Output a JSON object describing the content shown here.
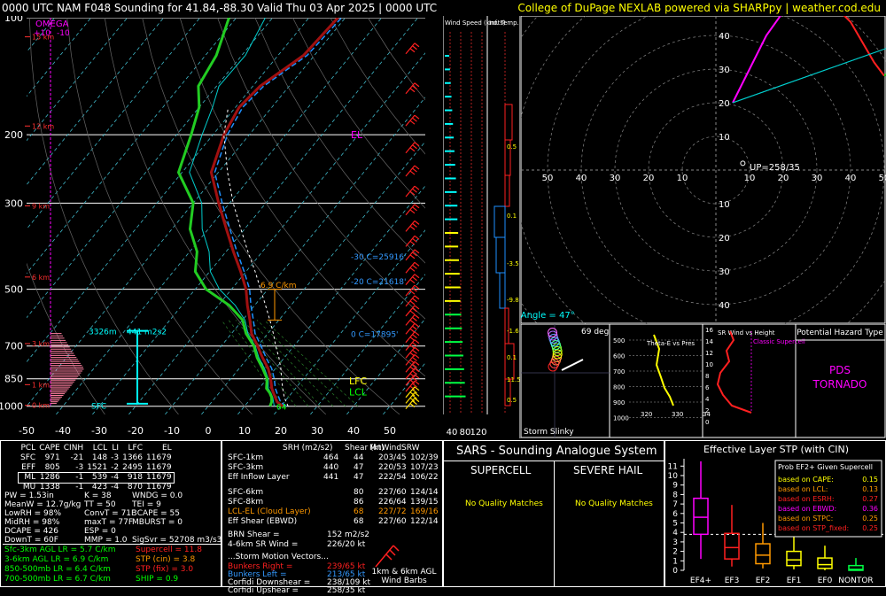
{
  "header": {
    "title": "0000 UTC NAM F048 Sounding for 41.84,-88.30 Valid  Thu 03 Apr 2025 | 0000 UTC",
    "credit": "College of DuPage NEXLAB powered via SHARPpy | weather.cod.edu"
  },
  "colors": {
    "temp": "#a01010",
    "dew": "#22cc22",
    "virtual": "#1e90ff",
    "wetbulb": "#00cccc",
    "parcel": "#ffffff",
    "accent_yellow": "#ffff00",
    "magenta": "#ff00ff",
    "cyan": "#00ffff",
    "red": "#ff2020",
    "orange": "#ff9900"
  },
  "chart_data": [
    {
      "type": "line",
      "title": "Skew-T Log-P",
      "pressure_ticks": [
        100,
        200,
        300,
        500,
        700,
        850,
        1000
      ],
      "temp_ticks": [
        -50,
        -40,
        -30,
        -20,
        -10,
        0,
        10,
        20,
        30,
        40,
        50
      ],
      "omega_label": "OMEGA",
      "omega_ticks": [
        "+10",
        "-10"
      ],
      "height_labels": [
        {
          "text": "15 km",
          "p": 112
        },
        {
          "text": "12 km",
          "p": 190
        },
        {
          "text": "9 km",
          "p": 305
        },
        {
          "text": "6 km",
          "p": 465
        },
        {
          "text": "3 km",
          "p": 690
        },
        {
          "text": "1 km",
          "p": 880
        },
        {
          "text": "0 km",
          "p": 995
        }
      ],
      "series": [
        {
          "name": "temperature",
          "points": [
            [
              1000,
              20.5
            ],
            [
              975,
              18
            ],
            [
              950,
              16.5
            ],
            [
              925,
              15
            ],
            [
              900,
              13.5
            ],
            [
              850,
              11
            ],
            [
              800,
              8
            ],
            [
              750,
              4
            ],
            [
              700,
              0
            ],
            [
              650,
              -4.5
            ],
            [
              600,
              -8
            ],
            [
              550,
              -12
            ],
            [
              500,
              -16
            ],
            [
              450,
              -21.5
            ],
            [
              400,
              -28
            ],
            [
              350,
              -35
            ],
            [
              300,
              -43
            ],
            [
              250,
              -52
            ],
            [
              200,
              -57
            ],
            [
              170,
              -59
            ],
            [
              150,
              -58
            ],
            [
              125,
              -53
            ],
            [
              100,
              -52
            ]
          ]
        },
        {
          "name": "dewpoint",
          "points": [
            [
              1000,
              17
            ],
            [
              975,
              16.5
            ],
            [
              950,
              15.5
            ],
            [
              925,
              14
            ],
            [
              900,
              12
            ],
            [
              850,
              10
            ],
            [
              800,
              6.5
            ],
            [
              750,
              2.5
            ],
            [
              700,
              -1
            ],
            [
              650,
              -6
            ],
            [
              600,
              -10
            ],
            [
              550,
              -17
            ],
            [
              500,
              -27
            ],
            [
              450,
              -34
            ],
            [
              400,
              -38
            ],
            [
              350,
              -45
            ],
            [
              300,
              -50
            ],
            [
              250,
              -61
            ],
            [
              200,
              -66
            ],
            [
              170,
              -70
            ],
            [
              150,
              -75
            ],
            [
              125,
              -77
            ],
            [
              100,
              -82
            ]
          ]
        },
        {
          "name": "parcel",
          "points": [
            [
              1000,
              22
            ],
            [
              950,
              19
            ],
            [
              900,
              16.5
            ],
            [
              850,
              14
            ],
            [
              800,
              11.5
            ],
            [
              750,
              8.5
            ],
            [
              700,
              5
            ],
            [
              650,
              1.5
            ],
            [
              600,
              -2.5
            ],
            [
              550,
              -7
            ],
            [
              500,
              -12
            ],
            [
              450,
              -17.5
            ],
            [
              400,
              -24
            ],
            [
              350,
              -31
            ],
            [
              300,
              -39
            ],
            [
              250,
              -47.5
            ],
            [
              200,
              -57
            ],
            [
              170,
              -62
            ]
          ]
        }
      ],
      "annotations": [
        {
          "text": "EL",
          "p": 200,
          "t": -2,
          "color": "#ff00ff"
        },
        {
          "text": "LFC",
          "p": 860,
          "t": 38,
          "color": "#ffff00"
        },
        {
          "text": "LCL",
          "p": 918,
          "t": 38,
          "color": "#00ff00"
        },
        {
          "text": "-30 C=25916'",
          "p": 410,
          "t": 22,
          "color": "#3399ff"
        },
        {
          "text": "-20 C=21618'",
          "p": 475,
          "t": 22,
          "color": "#3399ff"
        },
        {
          "text": "0 C=17895'",
          "p": 650,
          "t": 30,
          "color": "#3399ff"
        },
        {
          "text": "6.9 C/km",
          "p": 485,
          "t": -3,
          "color": "#ff9900"
        },
        {
          "text": "3326m",
          "p": 640,
          "t": -55,
          "color": "#00ffff"
        },
        {
          "text": "441 m2s2",
          "p": 640,
          "t": -40,
          "color": "#00ffff"
        },
        {
          "text": "SFC",
          "p": 995,
          "t": -52,
          "color": "#00ffff"
        },
        {
          "text": "64",
          "p": 1000,
          "t": 16,
          "color": "#00ff00"
        }
      ]
    },
    {
      "type": "bar",
      "title": "Wind Speed (knots)",
      "xticks": [
        "40",
        "80",
        "120"
      ],
      "values": [
        12,
        14,
        16,
        18,
        20,
        22,
        24,
        26,
        28,
        30,
        32,
        34,
        34,
        36,
        36,
        38,
        40,
        42,
        42,
        44,
        46,
        48,
        50,
        52,
        54,
        56
      ]
    },
    {
      "type": "bar",
      "title": "Inf. Temp. Adv (C/hr)",
      "labels": [
        "0.5",
        "0.1",
        "-3.5",
        "-9.8",
        "-1.6",
        "0.1",
        "11.5",
        "0.5"
      ]
    },
    {
      "type": "line",
      "title": "Hodograph",
      "axis_ticks": [
        "10",
        "20",
        "30",
        "40",
        "50",
        "60",
        "70"
      ],
      "y_ticks": [
        "10",
        "20",
        "30",
        "40",
        "50",
        "60"
      ],
      "labels": [
        {
          "text": "213/65 LM",
          "color": "#3399ff"
        },
        {
          "text": "227/72",
          "color": "#ff9900"
        },
        {
          "text": "239/65 RM",
          "color": "#ff2020"
        },
        {
          "text": "UP=258/35",
          "color": "#ffffff"
        },
        {
          "text": "Critical Angle = 47°",
          "color": "#00ffff"
        }
      ]
    },
    {
      "type": "line",
      "title": "Storm Slinky",
      "label": "69 deg"
    },
    {
      "type": "line",
      "title": "Theta-E vs Pres",
      "y_ticks": [
        "500",
        "600",
        "700",
        "800",
        "900",
        "1000"
      ],
      "x_ticks": [
        "320",
        "330",
        "34"
      ]
    },
    {
      "type": "line",
      "title": "SR Wind vs Height",
      "y_ticks": [
        "16",
        "14",
        "12",
        "10",
        "8",
        "6",
        "4",
        "2",
        "0"
      ],
      "label": "Classic Supercell"
    },
    {
      "type": "table",
      "title": "Effective Layer STP (with CIN)",
      "categories": [
        "EF4+",
        "EF3",
        "EF2",
        "EF1",
        "EF0",
        "NONTOR"
      ],
      "y_ticks": [
        "0",
        "1",
        "2",
        "3",
        "4",
        "5",
        "6",
        "7",
        "8",
        "9",
        "10",
        "11"
      ],
      "probability_title": "Prob EF2+ Given Supercell",
      "probabilities": [
        {
          "label": "based on CAPE:",
          "value": "0.15",
          "color": "#ffff00"
        },
        {
          "label": "based on LCL:",
          "value": "0.13",
          "color": "#ff9900"
        },
        {
          "label": "based on ESRH:",
          "value": "0.27",
          "color": "#ff2020"
        },
        {
          "label": "based on EBWD:",
          "value": "0.36",
          "color": "#ff00ff"
        },
        {
          "label": "based on STPC:",
          "value": "0.25",
          "color": "#ff9900"
        },
        {
          "label": "based on STP_fixed:",
          "value": "0.25",
          "color": "#ff2020"
        }
      ]
    }
  ],
  "potential_hazard": {
    "title": "Potential Hazard Type",
    "value": "PDS TORNADO"
  },
  "parcels": {
    "headers": [
      "PCL",
      "CAPE",
      "CINH",
      "LCL",
      "LI",
      "LFC",
      "EL"
    ],
    "rows": [
      [
        "SFC",
        "971",
        "-21",
        "148",
        "-3",
        "1366",
        "11679"
      ],
      [
        "EFF",
        "805",
        "-3",
        "1521",
        "-2",
        "2495",
        "11679"
      ],
      [
        "ML",
        "1286",
        "-1",
        "539",
        "-4",
        "918",
        "11679"
      ],
      [
        "MU",
        "1338",
        "-1",
        "423",
        "-4",
        "870",
        "11679"
      ]
    ]
  },
  "indices": [
    [
      "PW = 1.53in",
      "K = 38",
      "WNDG = 0.0"
    ],
    [
      "MeanW = 12.7g/kg",
      "TT = 50",
      "TEI = 9"
    ],
    [
      "LowRH = 98%",
      "ConvT = 71F",
      "3CAPE = 55"
    ],
    [
      "MidRH = 98%",
      "maxT = 77F",
      "MBURST = 0"
    ],
    [
      "DCAPE = 426",
      "ESP = 0",
      ""
    ],
    [
      "DownT = 60F",
      "MMP = 1.0",
      "SigSvr = 52708 m3/s3"
    ]
  ],
  "lapse_rates": [
    "Sfc-3km AGL LR = 5.7 C/km",
    "3-6km AGL LR = 6.9 C/km",
    "850-500mb LR = 6.4 C/km",
    "700-500mb LR = 6.7 C/km"
  ],
  "composites": [
    {
      "text": "Supercell = 11.8",
      "color": "#ff2020"
    },
    {
      "text": "STP (cin) = 3.8",
      "color": "#ff9900"
    },
    {
      "text": "STP (fix) = 3.0",
      "color": "#ff2020"
    },
    {
      "text": "SHIP = 0.9",
      "color": "#00ff00"
    }
  ],
  "kinematics": {
    "headers": [
      "SRH (m2/s2)",
      "Shear (kt)",
      "MnWind",
      "SRW"
    ],
    "rows": [
      [
        "SFC-1km",
        "464",
        "44",
        "203/45",
        "102/39"
      ],
      [
        "SFC-3km",
        "440",
        "47",
        "220/53",
        "107/23"
      ],
      [
        "Eff Inflow Layer",
        "441",
        "47",
        "222/54",
        "106/22"
      ],
      [
        "",
        "",
        "",
        "",
        ""
      ],
      [
        "SFC-6km",
        "",
        "80",
        "227/60",
        "124/14"
      ],
      [
        "SFC-8km",
        "",
        "86",
        "226/64",
        "139/15"
      ],
      [
        "LCL-EL (Cloud Layer)",
        "",
        "68",
        "227/72",
        "169/16"
      ],
      [
        "Eff Shear (EBWD)",
        "",
        "68",
        "227/60",
        "122/14"
      ]
    ],
    "brn_shear": "BRN Shear =",
    "brn_value": "152 m2/s2",
    "sr_wind": "4-6km SR Wind =",
    "sr_value": "226/20 kt",
    "storm_vectors_title": "...Storm Motion Vectors...",
    "vectors": [
      {
        "label": "Bunkers Right =",
        "value": "239/65 kt",
        "color": "#ff2020"
      },
      {
        "label": "Bunkers Left =",
        "value": "213/65 kt",
        "color": "#3399ff"
      },
      {
        "label": "Corfidi Downshear =",
        "value": "238/109 kt",
        "color": "#ffffff"
      },
      {
        "label": "Corfidi Upshear =",
        "value": "258/35 kt",
        "color": "#ffffff"
      }
    ],
    "barbs_label": "1km & 6km AGL Wind Barbs"
  },
  "sars": {
    "title": "SARS - Sounding Analogue System",
    "supercell_title": "SUPERCELL",
    "hail_title": "SEVERE HAIL",
    "supercell_result": "No Quality Matches",
    "hail_result": "No Quality Matches"
  }
}
